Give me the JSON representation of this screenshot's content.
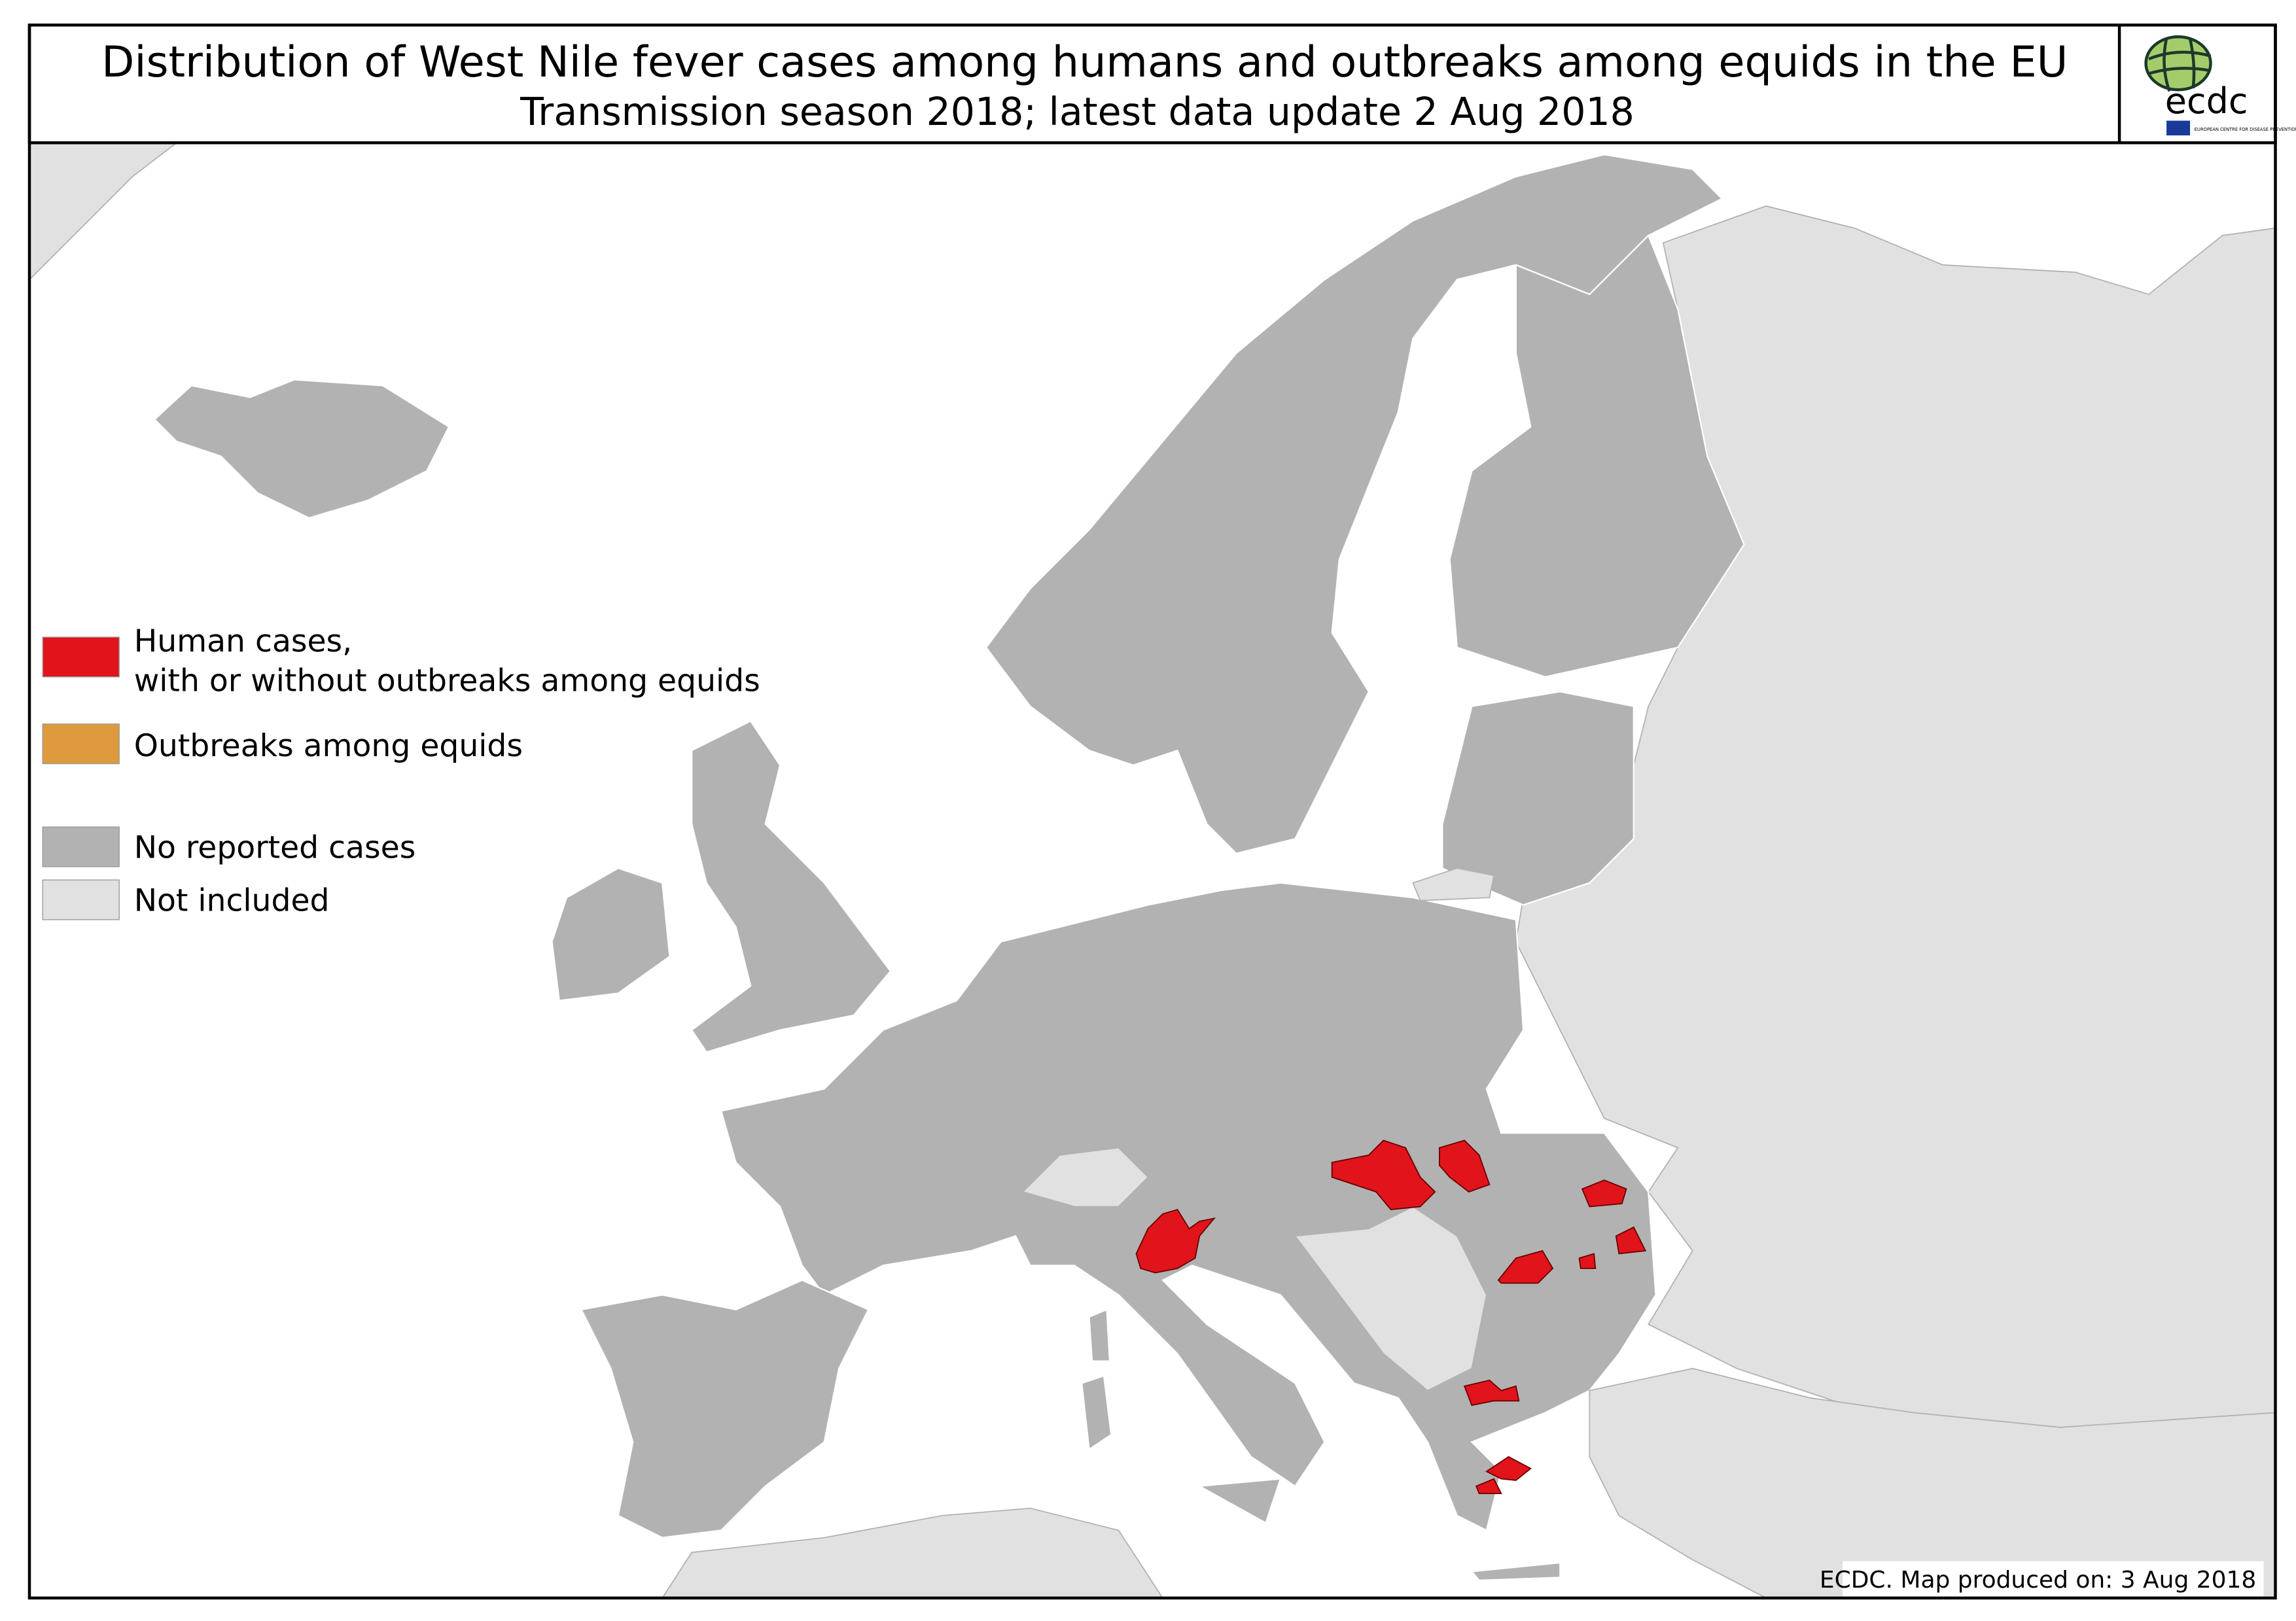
{
  "header": {
    "title": "Distribution of West Nile fever cases among humans and outbreaks among equids in the EU",
    "subtitle": "Transmission season 2018; latest data update  2 Aug 2018"
  },
  "logo": {
    "text": "ecdc",
    "caption": "EUROPEAN CENTRE FOR DISEASE PREVENTION AND CONTROL"
  },
  "legend": {
    "items": [
      {
        "label_line1": "Human cases,",
        "label_line2": "with or without outbreaks among equids",
        "color": "#e0141a"
      },
      {
        "label_line1": "Outbreaks among equids",
        "color": "#de9a3c"
      },
      {
        "label_line1": "No reported cases",
        "color": "#b2b2b2"
      },
      {
        "label_line1": "Not included",
        "color": "#e1e1e1"
      }
    ]
  },
  "footer": {
    "credit": "ECDC. Map produced on: 3 Aug 2018"
  },
  "colors": {
    "human_cases": "#e0141a",
    "equid_outbreaks": "#de9a3c",
    "no_reported": "#b2b2b2",
    "not_included": "#e1e1e1"
  }
}
